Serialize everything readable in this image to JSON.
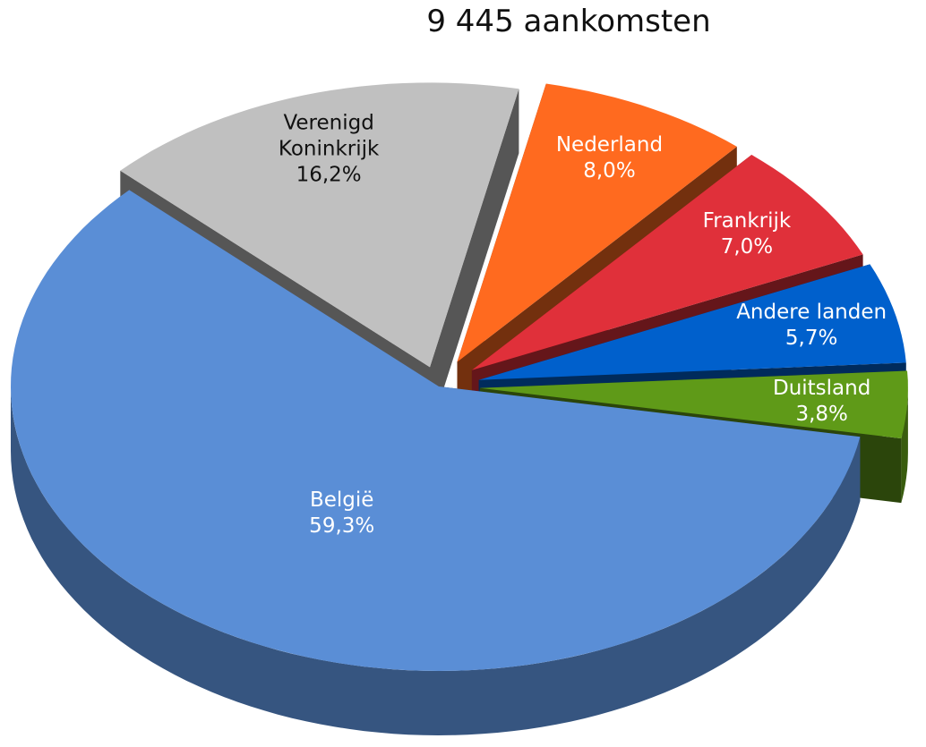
{
  "chart_data": {
    "type": "pie3d",
    "title": "9 445 aankomsten",
    "categories": [
      "Nederland",
      "Frankrijk",
      "Andere landen",
      "Duitsland",
      "België",
      "Verenigd Koninkrijk"
    ],
    "values": [
      8.0,
      7.0,
      5.7,
      3.8,
      59.3,
      16.2
    ],
    "value_labels": [
      "8,0%",
      "7,0%",
      "5,7%",
      "3,8%",
      "59,3%",
      "16,2%"
    ],
    "colors": [
      "#ff6a1f",
      "#e0303a",
      "#0060cc",
      "#5f9a18",
      "#5a8ed6",
      "#c0c0c0"
    ]
  }
}
